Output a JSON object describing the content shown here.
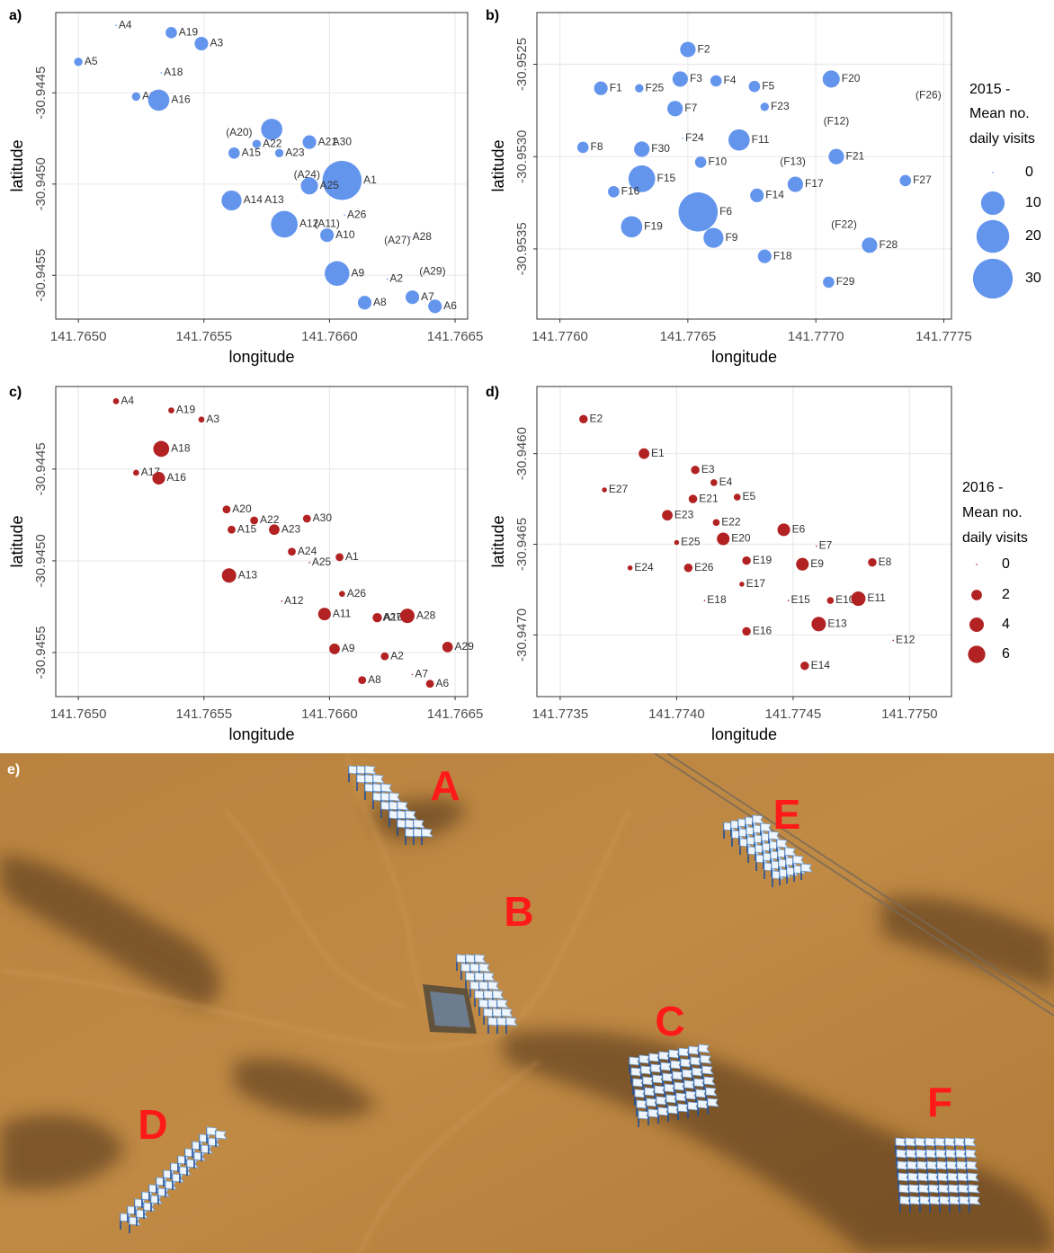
{
  "chart_data": [
    {
      "type": "bubble",
      "panel_label": "a)",
      "x_label": "longitude",
      "y_label": "latitude",
      "color": "#6495ed",
      "grid": true,
      "xlim": [
        141.76491,
        141.76655
      ],
      "ylim": [
        -30.94574,
        -30.94406
      ],
      "xticks": [
        {
          "value": 141.765,
          "label": "141.7650"
        },
        141.7655,
        {
          "value": 141.766,
          "label": "141.7660"
        },
        141.7665
      ],
      "yticks": [
        -30.9445,
        {
          "value": -30.945,
          "label": "-30.9450"
        },
        -30.9455
      ],
      "labels": [
        "A4",
        "A19",
        "A3",
        "A5",
        "A18",
        "A17",
        "A16",
        null,
        "(A20)",
        "A21",
        "A22",
        "A15",
        "A23",
        "A30",
        "(A24)",
        "A1",
        "A25",
        "A14",
        "A13",
        "A12",
        "A26",
        "(A11)",
        "A10",
        "(A27)",
        "A28",
        "A9",
        "A2",
        "(A29)",
        "A7",
        "A8",
        "A6"
      ],
      "x": [
        141.76515,
        141.76537,
        141.76549,
        141.765,
        141.76533,
        141.76523,
        141.76532,
        141.76577,
        141.76564,
        141.76592,
        141.76571,
        141.76562,
        141.7658,
        141.76605,
        141.76591,
        141.76605,
        141.76592,
        141.76561,
        141.76578,
        141.76582,
        141.76606,
        141.76599,
        141.76599,
        141.76627,
        141.76632,
        141.76603,
        141.76623,
        141.76641,
        141.76633,
        141.76614,
        141.76642
      ],
      "y": [
        -30.94413,
        -30.94417,
        -30.94423,
        -30.94433,
        -30.94439,
        -30.94452,
        -30.94454,
        -30.9447,
        -30.94472,
        -30.94477,
        -30.94478,
        -30.94483,
        -30.94483,
        -30.94477,
        -30.94495,
        -30.94498,
        -30.94501,
        -30.94509,
        -30.94509,
        -30.94522,
        -30.94517,
        -30.94522,
        -30.94528,
        -30.94531,
        -30.94529,
        -30.94549,
        -30.94552,
        -30.94548,
        -30.94562,
        -30.94565,
        -30.94567
      ],
      "sizes": [
        0,
        2,
        3,
        1,
        0,
        1,
        8,
        8,
        null,
        3,
        1,
        2,
        1,
        null,
        null,
        29,
        5,
        7,
        null,
        13,
        0,
        null,
        3,
        null,
        0,
        11,
        0,
        null,
        3,
        3,
        3
      ]
    },
    {
      "type": "bubble",
      "panel_label": "b)",
      "x_label": "longitude",
      "y_label": "latitude",
      "color": "#6495ed",
      "grid": true,
      "xlim": [
        141.77591,
        141.77753
      ],
      "ylim": [
        -30.95388,
        -30.95222
      ],
      "xticks": [
        {
          "value": 141.776,
          "label": "141.7760"
        },
        141.7765,
        {
          "value": 141.777,
          "label": "141.7770"
        },
        141.7775
      ],
      "yticks": [
        -30.9525,
        {
          "value": -30.953,
          "label": "-30.9530"
        },
        -30.9535
      ],
      "labels": [
        "F2",
        "F3",
        "F4",
        "F5",
        "F20",
        "F1",
        "F25",
        "F23",
        "F7",
        "(F12)",
        "(F26)",
        "F24",
        "F11",
        "F8",
        "F30",
        "F10",
        "(F13)",
        "F21",
        "F15",
        "F27",
        "F17",
        "F16",
        "F14",
        "F6",
        "F19",
        "F9",
        "(F22)",
        "F28",
        "F18",
        "F29"
      ],
      "x": [
        141.7765,
        141.77647,
        141.77661,
        141.77676,
        141.77706,
        141.77616,
        141.77631,
        141.7768,
        141.77645,
        141.77708,
        141.77744,
        141.77648,
        141.7767,
        141.77609,
        141.77632,
        141.77655,
        141.77691,
        141.77708,
        141.77632,
        141.77735,
        141.77692,
        141.77621,
        141.77677,
        141.77654,
        141.77628,
        141.7766,
        141.77711,
        141.77721,
        141.7768,
        141.77705
      ],
      "y": [
        -30.95242,
        -30.95258,
        -30.95259,
        -30.95262,
        -30.95258,
        -30.95263,
        -30.95263,
        -30.95273,
        -30.95274,
        -30.95281,
        -30.95267,
        -30.9529,
        -30.95291,
        -30.95295,
        -30.95296,
        -30.95303,
        -30.95303,
        -30.953,
        -30.95312,
        -30.95313,
        -30.95315,
        -30.95319,
        -30.95321,
        -30.9533,
        -30.95338,
        -30.95344,
        -30.95337,
        -30.95348,
        -30.95354,
        -30.95368
      ],
      "sizes": [
        4,
        4,
        2,
        2,
        5,
        3,
        1,
        1,
        4,
        null,
        null,
        0,
        8,
        2,
        4,
        2,
        null,
        4,
        13,
        2,
        4,
        2,
        3,
        29,
        8,
        7,
        null,
        4,
        3,
        2
      ],
      "size_legend": {
        "title_lines": [
          "2015 -",
          "Mean no.",
          "daily visits"
        ],
        "values": [
          0,
          10,
          20,
          30
        ]
      }
    },
    {
      "type": "bubble",
      "panel_label": "c)",
      "x_label": "longitude",
      "y_label": "latitude",
      "color": "#b22222",
      "grid": true,
      "xlim": [
        141.76491,
        141.76655
      ],
      "ylim": [
        -30.94574,
        -30.94405
      ],
      "xticks": [
        {
          "value": 141.765,
          "label": "141.7650"
        },
        141.7655,
        {
          "value": 141.766,
          "label": "141.7660"
        },
        141.7665
      ],
      "yticks": [
        -30.9445,
        {
          "value": -30.945,
          "label": "-30.9450"
        },
        -30.9455
      ],
      "labels": [
        "A4",
        "A19",
        "A3",
        "A18",
        "A17",
        "A16",
        "A20",
        "A22",
        "A30",
        "A15",
        "A23",
        "A24",
        "A25",
        "A1",
        "A13",
        "A12",
        "A26",
        "A11",
        "A10",
        "A27",
        "A28",
        "A29",
        "A9",
        "A2",
        "A7",
        "A8",
        "A6"
      ],
      "x": [
        141.76515,
        141.76537,
        141.76549,
        141.76533,
        141.76523,
        141.76532,
        141.76559,
        141.7657,
        141.76591,
        141.76561,
        141.76578,
        141.76585,
        141.76592,
        141.76604,
        141.7656,
        141.76581,
        141.76605,
        141.76598,
        141.76619,
        141.76625,
        141.76631,
        141.76647,
        141.76602,
        141.76622,
        141.76633,
        141.76613,
        141.7664
      ],
      "y": [
        -30.94413,
        -30.94418,
        -30.94423,
        -30.94439,
        -30.94452,
        -30.94455,
        -30.94472,
        -30.94478,
        -30.94477,
        -30.94483,
        -30.94483,
        -30.94495,
        -30.94501,
        -30.94498,
        -30.94508,
        -30.94522,
        -30.94518,
        -30.94529,
        -30.94531,
        -30.94531,
        -30.9453,
        -30.94547,
        -30.94548,
        -30.94552,
        -30.94562,
        -30.94565,
        -30.94567
      ],
      "sizes": [
        0.5,
        0.5,
        0.5,
        5,
        0.5,
        3,
        1,
        1,
        1,
        1,
        2,
        1,
        0,
        1,
        4,
        0,
        0.5,
        3,
        1.5,
        null,
        4,
        2,
        2,
        1,
        0,
        1,
        1
      ]
    },
    {
      "type": "bubble",
      "panel_label": "d)",
      "x_label": "longitude",
      "y_label": "latitude",
      "color": "#b22222",
      "grid": true,
      "xlim": [
        141.7734,
        141.77518
      ],
      "ylim": [
        -30.94734,
        -30.94563
      ],
      "xticks": [
        141.7735,
        {
          "value": 141.774,
          "label": "141.7740"
        },
        141.7745,
        {
          "value": 141.775,
          "label": "141.7750"
        }
      ],
      "yticks": [
        {
          "value": -30.946,
          "label": "-30.9460"
        },
        -30.9465,
        {
          "value": -30.947,
          "label": "-30.9470"
        }
      ],
      "labels": [
        "E2",
        "E1",
        "E3",
        "E4",
        "E27",
        "E21",
        "E5",
        "E23",
        "E22",
        "E6",
        "E25",
        "E20",
        "E7",
        "E19",
        "E9",
        "E8",
        "E24",
        "E26",
        "E17",
        "E18",
        "E15",
        "E10",
        "E11",
        "E13",
        "E16",
        "E12",
        "E14"
      ],
      "x": [
        141.7736,
        141.77386,
        141.77408,
        141.77416,
        141.77369,
        141.77407,
        141.77426,
        141.77396,
        141.77417,
        141.77446,
        141.774,
        141.7742,
        141.7746,
        141.7743,
        141.77454,
        141.77484,
        141.7738,
        141.77405,
        141.77428,
        141.77412,
        141.77448,
        141.77466,
        141.77478,
        141.77461,
        141.7743,
        141.77493,
        141.77455
      ],
      "y": [
        -30.94581,
        -30.946,
        -30.94609,
        -30.94616,
        -30.9462,
        -30.94625,
        -30.94624,
        -30.94634,
        -30.94638,
        -30.94642,
        -30.94649,
        -30.94647,
        -30.94651,
        -30.94659,
        -30.94661,
        -30.9466,
        -30.94663,
        -30.94663,
        -30.94672,
        -30.94681,
        -30.94681,
        -30.94681,
        -30.9468,
        -30.94694,
        -30.94698,
        -30.94703,
        -30.94717
      ],
      "sizes": [
        1.2,
        2,
        1.2,
        0.7,
        0.3,
        1.2,
        0.7,
        2,
        0.7,
        3,
        0.3,
        3,
        0,
        1.2,
        3,
        1.2,
        0.3,
        1.2,
        0.3,
        0,
        0,
        0.7,
        4,
        4,
        1.2,
        0,
        1.2
      ],
      "size_legend": {
        "title_lines": [
          "2016 -",
          "Mean no.",
          "daily visits"
        ],
        "values": [
          0,
          2,
          4,
          6
        ]
      }
    }
  ],
  "image_panel": {
    "panel_label": "e)",
    "sites": [
      "A",
      "B",
      "C",
      "D",
      "E",
      "F"
    ]
  }
}
